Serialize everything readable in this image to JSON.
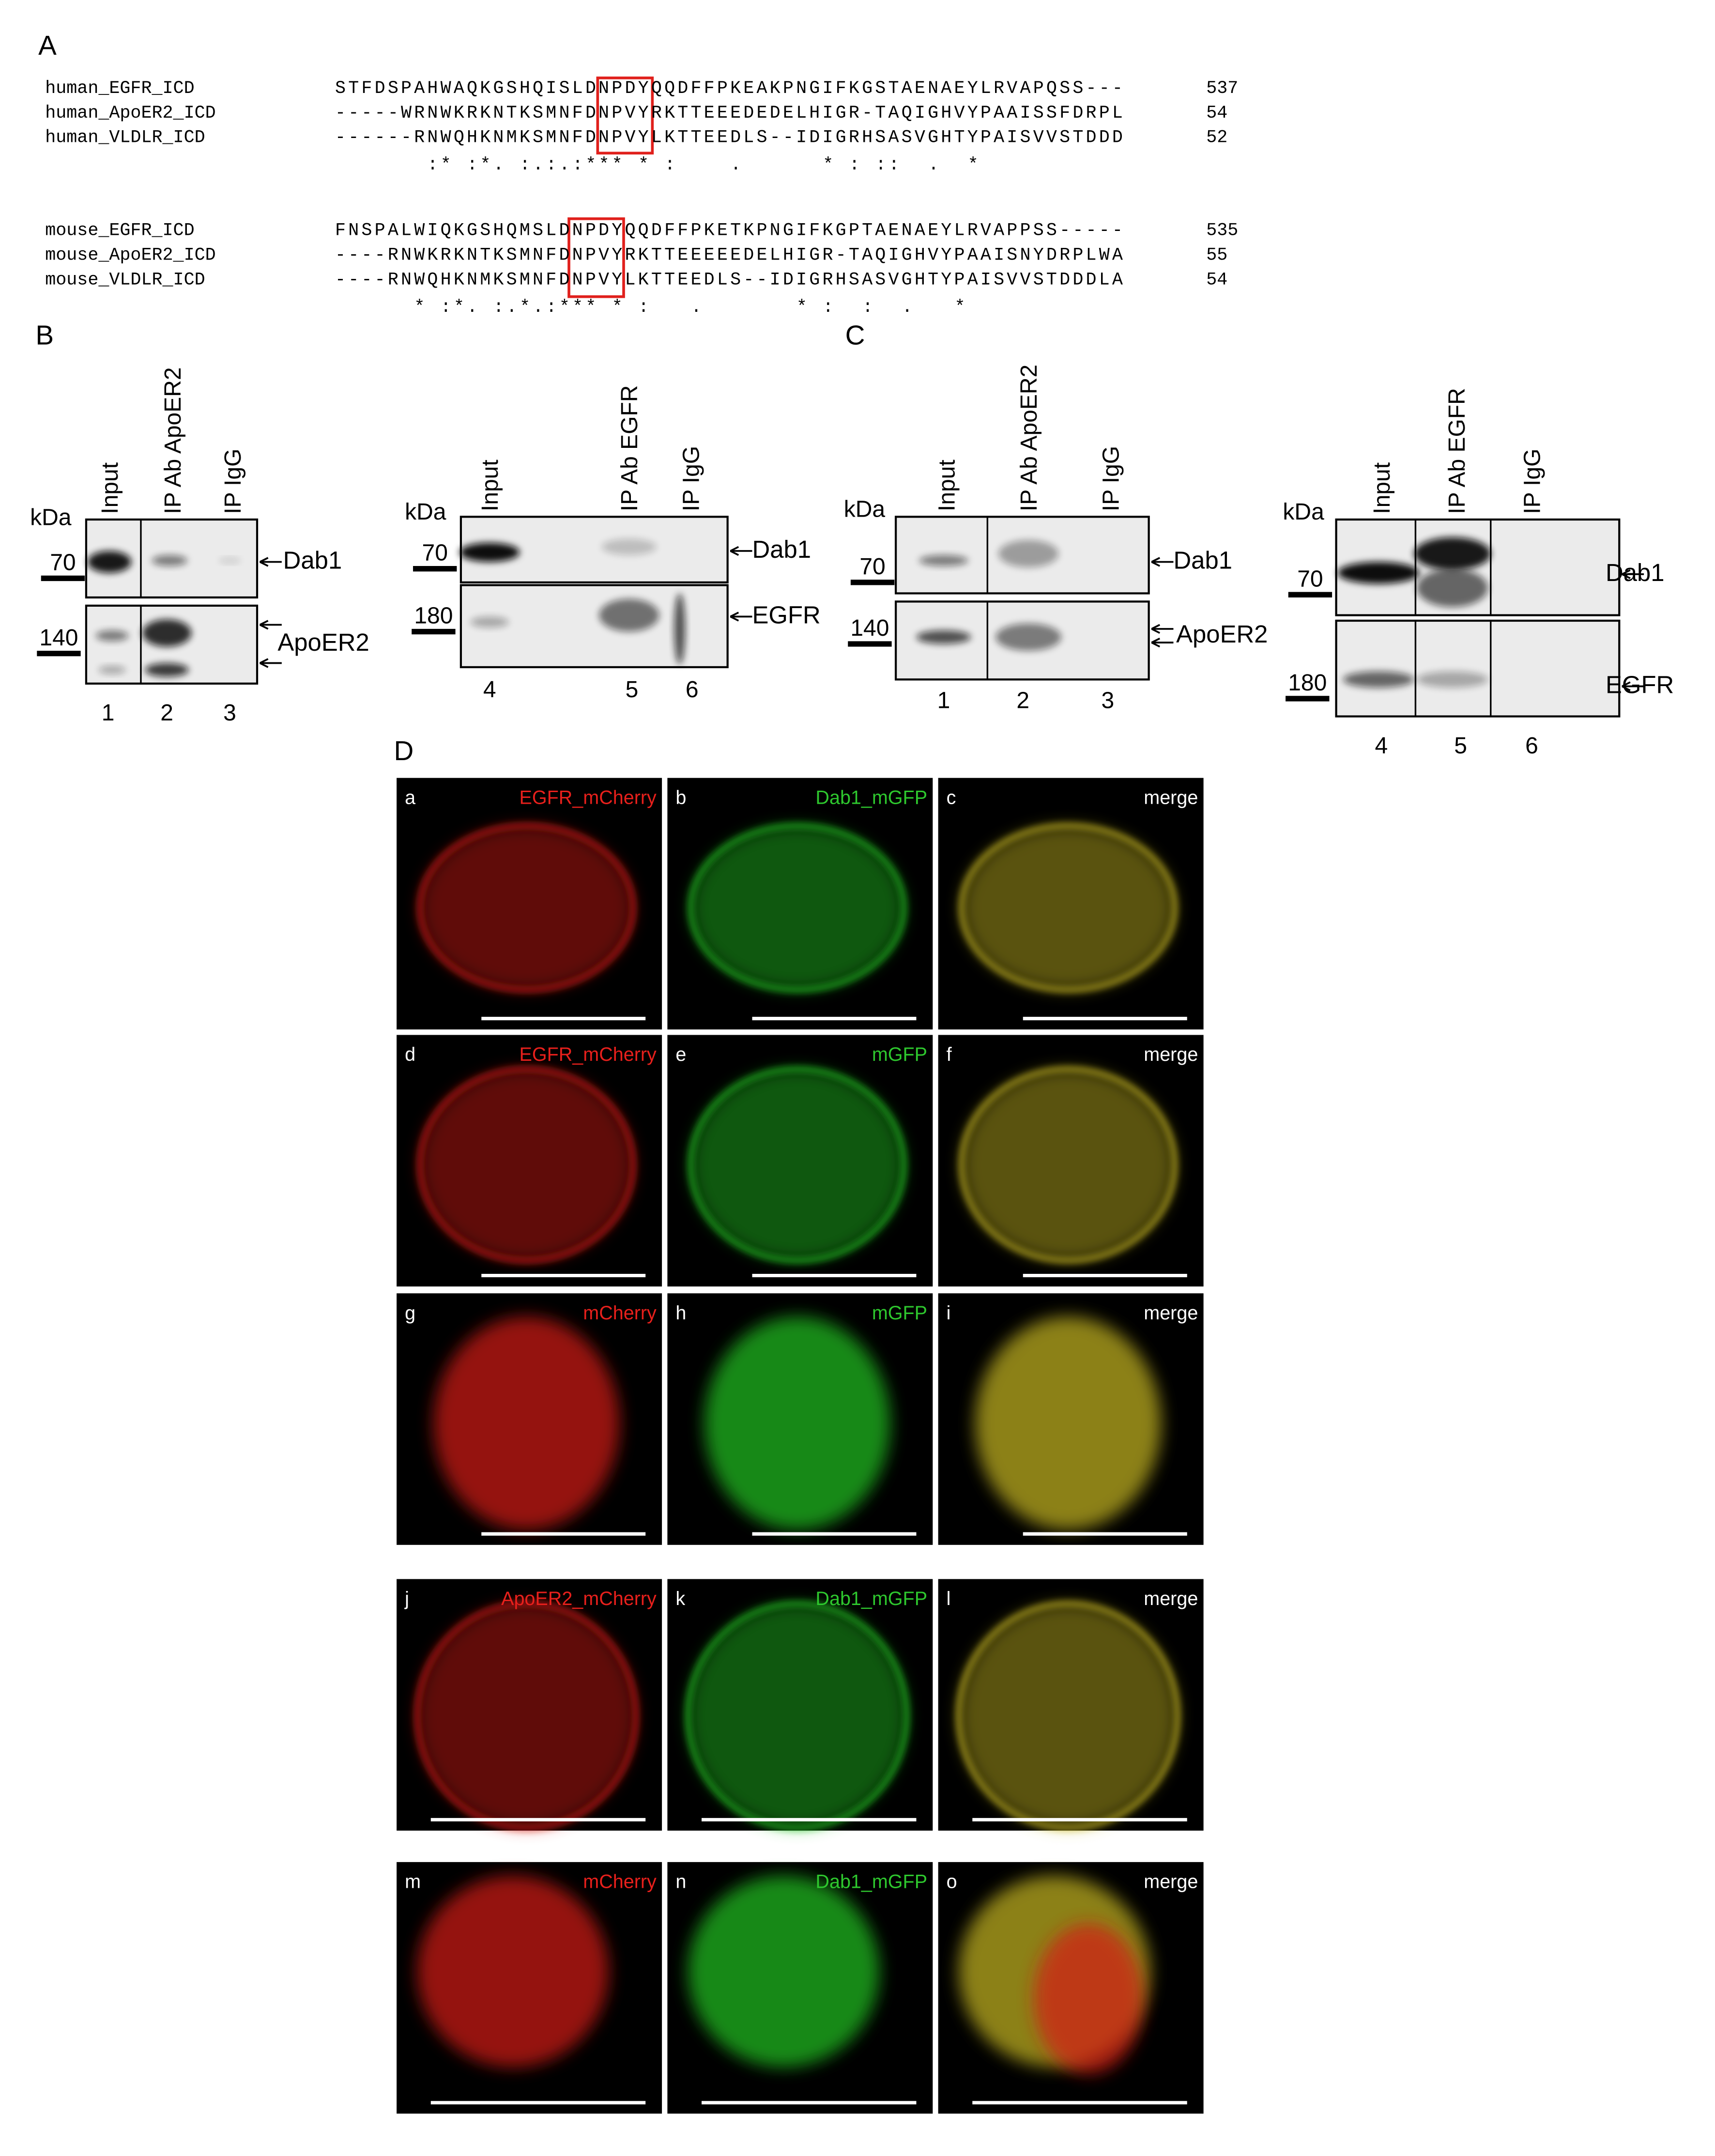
{
  "panel_a": {
    "label": "A",
    "groups": [
      {
        "rows": [
          {
            "name": "human_EGFR_ICD",
            "sequence": "STFDSPAHWAQKGSHQISLDNPDYQQDFFPKEAKPNGIFKGSTAENAEYLRVAPQSS---",
            "end": 537
          },
          {
            "name": "human_ApoER2_ICD",
            "sequence": "-----WRNWKRKNTKSMNFDNPVYRKTTEEEDEDELHIGR-TAQIGHVYPAAISSFDRPL",
            "end": 54
          },
          {
            "name": "human_VLDLR_ICD",
            "sequence": "------RNWQHKNMKSMNFDNPVYLKTTEEDLS--IDIGRHSASVGHTYPAISVVSTDDD",
            "end": 52
          }
        ],
        "consensus": "       :* :*. :.:.:*** * :    .      * : ::  .  *"
      },
      {
        "rows": [
          {
            "name": "mouse_EGFR_ICD",
            "sequence": "FNSPALWIQKGSHQMSLDNPDYQQDFFPKETKPNGIFKGPTAENAEYLRVAPPSS-----",
            "end": 535
          },
          {
            "name": "mouse_ApoER2_ICD",
            "sequence": "----RNWKRKNTKSMNFDNPVYRKTTEEEEEDELHIGR-TAQIGHVYPAAISNYDRPLWA",
            "end": 55
          },
          {
            "name": "mouse_VLDLR_ICD",
            "sequence": "----RNWQHKNMKSMNFDNPVYLKTTEEDLS--IDIGRHSASVGHTYPAISVVSTDDDLA",
            "end": 54
          }
        ],
        "consensus": "      * :*. :.*.:*** * :   .       * :  :  .   *"
      }
    ]
  },
  "panel_b": {
    "label": "B",
    "blots": [
      {
        "kda": "kDa",
        "lanes": [
          "Input",
          "IP Ab ApoER2",
          "IP IgG"
        ],
        "lane_numbers": [
          1,
          2,
          3
        ],
        "strips": [
          {
            "marker": 70,
            "target": "Dab1"
          },
          {
            "marker": 140,
            "target": "ApoER2"
          }
        ]
      },
      {
        "kda": "kDa",
        "lanes": [
          "Input",
          "IP Ab EGFR",
          "IP IgG"
        ],
        "lane_numbers": [
          4,
          5,
          6
        ],
        "strips": [
          {
            "marker": 70,
            "target": "Dab1"
          },
          {
            "marker": 180,
            "target": "EGFR"
          }
        ]
      }
    ]
  },
  "panel_c": {
    "label": "C",
    "blots": [
      {
        "kda": "kDa",
        "lanes": [
          "Input",
          "IP Ab ApoER2",
          "IP IgG"
        ],
        "lane_numbers": [
          1,
          2,
          3
        ],
        "strips": [
          {
            "marker": 70,
            "target": "Dab1"
          },
          {
            "marker": 140,
            "target": "ApoER2"
          }
        ]
      },
      {
        "kda": "kDa",
        "lanes": [
          "Input",
          "IP Ab EGFR",
          "IP IgG"
        ],
        "lane_numbers": [
          4,
          5,
          6
        ],
        "strips": [
          {
            "marker": 70,
            "target": "Dab1"
          },
          {
            "marker": 180,
            "target": "EGFR"
          }
        ]
      }
    ]
  },
  "panel_d": {
    "label": "D",
    "images": [
      {
        "letter": "a",
        "label": "EGFR_mCherry",
        "color": "#e8201c"
      },
      {
        "letter": "b",
        "label": "Dab1_mGFP",
        "color": "#2ec82e"
      },
      {
        "letter": "c",
        "label": "merge",
        "color": "#ffffff"
      },
      {
        "letter": "d",
        "label": "EGFR_mCherry",
        "color": "#e8201c"
      },
      {
        "letter": "e",
        "label": "mGFP",
        "color": "#2ec82e"
      },
      {
        "letter": "f",
        "label": "merge",
        "color": "#ffffff"
      },
      {
        "letter": "g",
        "label": "mCherry",
        "color": "#e8201c"
      },
      {
        "letter": "h",
        "label": "mGFP",
        "color": "#2ec82e"
      },
      {
        "letter": "i",
        "label": "merge",
        "color": "#ffffff"
      },
      {
        "letter": "j",
        "label": "ApoER2_mCherry",
        "color": "#e8201c"
      },
      {
        "letter": "k",
        "label": "Dab1_mGFP",
        "color": "#2ec82e"
      },
      {
        "letter": "l",
        "label": "merge",
        "color": "#ffffff"
      },
      {
        "letter": "m",
        "label": "mCherry",
        "color": "#e8201c"
      },
      {
        "letter": "n",
        "label": "Dab1_mGFP",
        "color": "#2ec82e"
      },
      {
        "letter": "o",
        "label": "merge",
        "color": "#ffffff"
      }
    ]
  }
}
